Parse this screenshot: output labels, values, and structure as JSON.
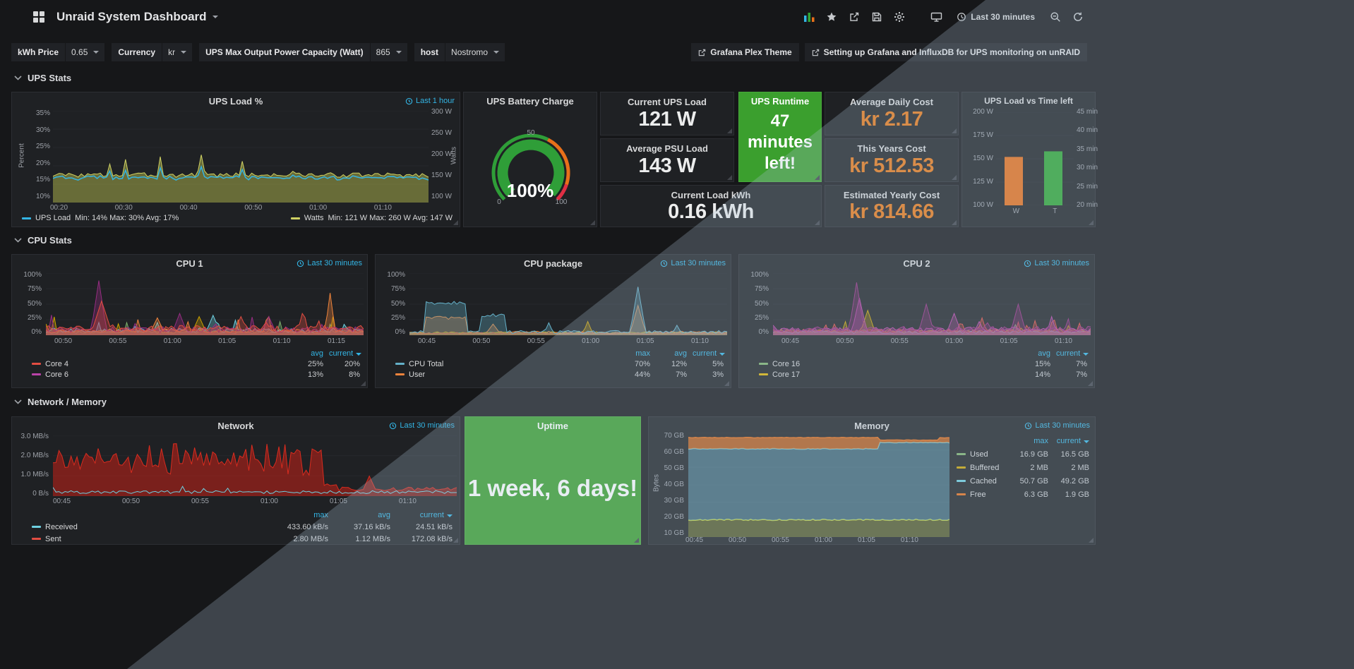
{
  "colors": {
    "accent_blue": "#33b5e5",
    "value_orange": "#eb7b18",
    "green_panel": "#3b9f2e",
    "panel_bg": "#1f2124",
    "page_bg": "#161719"
  },
  "navbar": {
    "title": "Unraid System Dashboard",
    "time_range": "Last 30 minutes",
    "icons": [
      "add-panel",
      "star",
      "share",
      "save",
      "settings",
      "cycle-view-mode",
      "time-range",
      "zoom-out",
      "refresh"
    ]
  },
  "submenu": {
    "variables": [
      {
        "label": "kWh Price",
        "value": "0.65"
      },
      {
        "label": "Currency",
        "value": "kr"
      },
      {
        "label": "UPS Max Output Power Capacity (Watt)",
        "value": "865"
      },
      {
        "label": "host",
        "value": "Nostromo"
      }
    ],
    "links": [
      {
        "label": "Grafana Plex Theme"
      },
      {
        "label": "Setting up Grafana and InfluxDB for UPS monitoring on unRAID"
      }
    ]
  },
  "sections": {
    "ups": "UPS Stats",
    "cpu": "CPU Stats",
    "netmem": "Network / Memory"
  },
  "ups_load": {
    "title": "UPS Load %",
    "time_range": "Last 1 hour",
    "y_left_label": "Percent",
    "y_right_label": "Watts",
    "y_left": [
      "35%",
      "30%",
      "25%",
      "20%",
      "15%",
      "10%"
    ],
    "y_right": [
      "300 W",
      "250 W",
      "200 W",
      "150 W",
      "100 W"
    ],
    "x": [
      "00:20",
      "00:30",
      "00:40",
      "00:50",
      "01:00",
      "01:10"
    ],
    "legend": [
      {
        "name": "UPS Load",
        "stats": "Min: 14% Max: 30% Avg: 17%",
        "color": "#33b5e5"
      },
      {
        "name": "Watts",
        "stats": "Min: 121 W Max: 260 W Avg: 147 W",
        "color": "#cfd163"
      }
    ]
  },
  "battery": {
    "title": "UPS Battery Charge",
    "value": "100%",
    "min": "0",
    "mid": "50",
    "max": "100"
  },
  "stats": {
    "current_ups_load": {
      "title": "Current UPS Load",
      "value": "121 W"
    },
    "avg_psu_load": {
      "title": "Average PSU Load",
      "value": "143 W"
    },
    "current_load_kwh": {
      "title": "Current Load kWh",
      "value": "0.16 kWh"
    },
    "ups_runtime": {
      "title": "UPS Runtime",
      "value": "47 minutes left!"
    },
    "avg_daily_cost": {
      "title": "Average Daily Cost",
      "value": "kr 2.17"
    },
    "this_years_cost": {
      "title": "This Years Cost",
      "value": "kr 512.53"
    },
    "est_yearly_cost": {
      "title": "Estimated Yearly Cost",
      "value": "kr 814.66"
    }
  },
  "ups_bar": {
    "title": "UPS Load vs Time left",
    "y_left": [
      "200 W",
      "175 W",
      "150 W",
      "125 W",
      "100 W"
    ],
    "y_right": [
      "45 min",
      "40 min",
      "35 min",
      "30 min",
      "25 min",
      "20 min"
    ],
    "x": [
      "W",
      "T"
    ],
    "bars": [
      {
        "label": "W",
        "color": "#e8701a",
        "height_frac": 0.52
      },
      {
        "label": "T",
        "color": "#2fa734",
        "height_frac": 0.58
      }
    ]
  },
  "cpu_panels": [
    {
      "title": "CPU 1",
      "time_range": "Last 30 minutes",
      "y": [
        "100%",
        "75%",
        "50%",
        "25%",
        "0%"
      ],
      "x": [
        "00:50",
        "00:55",
        "01:00",
        "01:05",
        "01:10",
        "01:15"
      ],
      "columns": [
        "avg",
        "current"
      ],
      "rows": [
        {
          "name": "Core 4",
          "color": "#e24d42",
          "values": [
            "25%",
            "20%"
          ]
        },
        {
          "name": "Core 6",
          "color": "#ba43a9",
          "values": [
            "13%",
            "8%"
          ]
        }
      ]
    },
    {
      "title": "CPU package",
      "time_range": "Last 30 minutes",
      "y": [
        "100%",
        "75%",
        "50%",
        "25%",
        "0%"
      ],
      "x": [
        "00:45",
        "00:50",
        "00:55",
        "01:00",
        "01:05",
        "01:10"
      ],
      "columns": [
        "max",
        "avg",
        "current"
      ],
      "rows": [
        {
          "name": "CPU Total",
          "color": "#64b0c8",
          "values": [
            "70%",
            "12%",
            "5%"
          ]
        },
        {
          "name": "User",
          "color": "#ef843c",
          "values": [
            "44%",
            "7%",
            "3%"
          ]
        }
      ]
    },
    {
      "title": "CPU 2",
      "time_range": "Last 30 minutes",
      "y": [
        "100%",
        "75%",
        "50%",
        "25%",
        "0%"
      ],
      "x": [
        "00:45",
        "00:50",
        "00:55",
        "01:00",
        "01:05",
        "01:10"
      ],
      "columns": [
        "avg",
        "current"
      ],
      "rows": [
        {
          "name": "Core 16",
          "color": "#7eb26d",
          "values": [
            "15%",
            "7%"
          ]
        },
        {
          "name": "Core 17",
          "color": "#e0b400",
          "values": [
            "14%",
            "7%"
          ]
        }
      ]
    }
  ],
  "network": {
    "title": "Network",
    "time_range": "Last 30 minutes",
    "y": [
      "3.0 MB/s",
      "2.0 MB/s",
      "1.0 MB/s",
      "0 B/s"
    ],
    "x": [
      "00:45",
      "00:50",
      "00:55",
      "01:00",
      "01:05",
      "01:10"
    ],
    "columns": [
      "max",
      "avg",
      "current"
    ],
    "rows": [
      {
        "name": "Received",
        "color": "#6ed0e0",
        "values": [
          "433.60 kB/s",
          "37.16 kB/s",
          "24.51 kB/s"
        ]
      },
      {
        "name": "Sent",
        "color": "#e24d42",
        "values": [
          "2.80 MB/s",
          "1.12 MB/s",
          "172.08 kB/s"
        ]
      }
    ]
  },
  "uptime": {
    "title": "Uptime",
    "value": "1 week, 6 days!"
  },
  "memory": {
    "title": "Memory",
    "time_range": "Last 30 minutes",
    "y_label": "Bytes",
    "y": [
      "70 GB",
      "60 GB",
      "50 GB",
      "40 GB",
      "30 GB",
      "20 GB",
      "10 GB"
    ],
    "x": [
      "00:45",
      "00:50",
      "00:55",
      "01:00",
      "01:05",
      "01:10"
    ],
    "columns": [
      "max",
      "current"
    ],
    "rows": [
      {
        "name": "Used",
        "color": "#7eb26d",
        "values": [
          "16.9 GB",
          "16.5 GB"
        ]
      },
      {
        "name": "Buffered",
        "color": "#cca300",
        "values": [
          "2 MB",
          "2 MB"
        ]
      },
      {
        "name": "Cached",
        "color": "#6ed0e0",
        "values": [
          "50.7 GB",
          "49.2 GB"
        ]
      },
      {
        "name": "Free",
        "color": "#e8701a",
        "values": [
          "6.3 GB",
          "1.9 GB"
        ]
      }
    ]
  }
}
